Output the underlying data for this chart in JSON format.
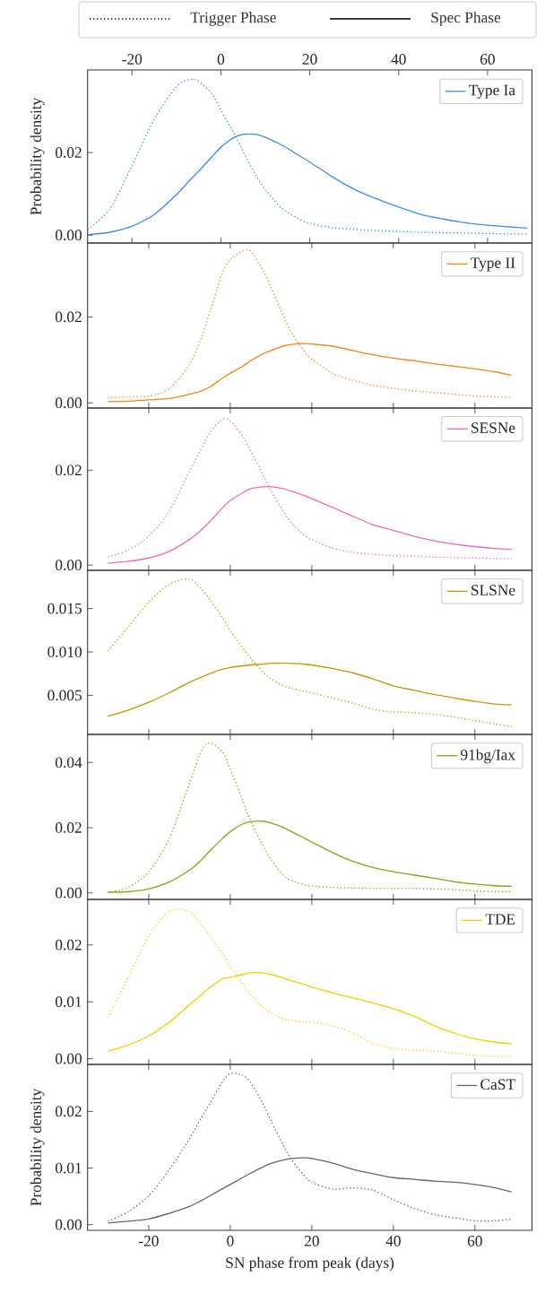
{
  "chart_data": [
    {
      "type": "other",
      "annotations": [
        "Trigger Phase",
        "Spec Phase"
      ]
    },
    {
      "type": "line",
      "x": [
        -30,
        -25,
        -20,
        -15,
        -10,
        -7,
        -5,
        -2,
        0,
        3,
        5,
        8,
        10,
        13,
        15,
        18,
        20,
        25,
        30,
        35,
        40,
        45,
        50,
        55,
        60,
        65,
        69
      ],
      "xlim": [
        -30,
        70
      ],
      "xticks": [
        -20,
        0,
        20,
        40,
        60
      ],
      "ylim": [
        -0.0019,
        0.04
      ],
      "yticks": [
        {
          "value": 0,
          "label": "0.00"
        },
        {
          "value": 0.02,
          "label": "0.02"
        }
      ],
      "ylabel": "Probability density",
      "legend": "top right",
      "series": [
        {
          "color": "#3b8eea",
          "line_style": "dotted",
          "values": [
            0.0014,
            0.0063,
            0.0168,
            0.0281,
            0.0359,
            0.0377,
            0.0372,
            0.0342,
            0.0303,
            0.0246,
            0.0203,
            0.0142,
            0.0111,
            0.0072,
            0.0055,
            0.0037,
            0.0029,
            0.0018,
            0.0014,
            0.0011,
            0.0009,
            0.0007,
            0.0006,
            0.0005,
            0.0004,
            0.0003,
            0.0003
          ]
        },
        {
          "name": "Type Ia",
          "color": "#3b8eea",
          "line_style": "solid",
          "values": [
            0.0001,
            0.0007,
            0.0022,
            0.005,
            0.0098,
            0.0133,
            0.0155,
            0.019,
            0.0213,
            0.0237,
            0.0244,
            0.0244,
            0.0237,
            0.0222,
            0.021,
            0.019,
            0.0177,
            0.0142,
            0.0111,
            0.0088,
            0.0068,
            0.005,
            0.0039,
            0.003,
            0.0024,
            0.002,
            0.0017
          ]
        }
      ]
    },
    {
      "type": "line",
      "x": [
        -30,
        -25,
        -20,
        -15,
        -10,
        -7,
        -5,
        -2,
        0,
        3,
        5,
        8,
        10,
        13,
        15,
        18,
        20,
        25,
        30,
        35,
        40,
        45,
        50,
        55,
        60,
        65,
        69
      ],
      "xlim": [
        -35,
        74
      ],
      "xticks": [
        -20,
        0,
        20,
        40,
        60
      ],
      "tick_labels": "y",
      "ylim": [
        -0.0012,
        0.0372
      ],
      "yticks": [
        {
          "value": 0,
          "label": "0.00"
        },
        {
          "value": 0.02,
          "label": "0.02"
        }
      ],
      "legend": "top right",
      "series": [
        {
          "color": "#f58518",
          "line_style": "dotted",
          "values": [
            0.0012,
            0.0014,
            0.0016,
            0.0033,
            0.0089,
            0.0154,
            0.0211,
            0.0301,
            0.0333,
            0.0353,
            0.0353,
            0.0309,
            0.0268,
            0.0203,
            0.0163,
            0.0122,
            0.0102,
            0.0069,
            0.0053,
            0.0041,
            0.0034,
            0.0028,
            0.0024,
            0.002,
            0.0016,
            0.0014,
            0.0012
          ]
        },
        {
          "name": "Type II",
          "color": "#f58518",
          "line_style": "solid",
          "values": [
            0.0003,
            0.0004,
            0.0007,
            0.001,
            0.002,
            0.0028,
            0.0037,
            0.0057,
            0.0069,
            0.0085,
            0.0098,
            0.0114,
            0.0122,
            0.0132,
            0.0136,
            0.0138,
            0.0137,
            0.0132,
            0.0122,
            0.0112,
            0.0104,
            0.0098,
            0.0091,
            0.0085,
            0.0079,
            0.0072,
            0.0064
          ]
        }
      ]
    },
    {
      "type": "line",
      "x": [
        -30,
        -25,
        -20,
        -15,
        -10,
        -7,
        -5,
        -2,
        0,
        3,
        5,
        8,
        10,
        13,
        15,
        18,
        20,
        25,
        30,
        35,
        40,
        45,
        50,
        55,
        60,
        65,
        69
      ],
      "xlim": [
        -35,
        74
      ],
      "xticks": [
        -20,
        0,
        20,
        40,
        60
      ],
      "tick_labels": "y",
      "ylim": [
        -0.0011,
        0.0331
      ],
      "yticks": [
        {
          "value": 0,
          "label": "0.00"
        },
        {
          "value": 0.02,
          "label": "0.02"
        }
      ],
      "legend": "top right",
      "series": [
        {
          "color": "#f06bb4",
          "line_style": "dotted",
          "values": [
            0.0017,
            0.0032,
            0.0061,
            0.0113,
            0.0198,
            0.0247,
            0.0279,
            0.0307,
            0.0304,
            0.0272,
            0.024,
            0.0191,
            0.0156,
            0.0113,
            0.0089,
            0.0064,
            0.0054,
            0.0036,
            0.0027,
            0.0023,
            0.002,
            0.0019,
            0.0017,
            0.0016,
            0.0015,
            0.0014,
            0.0013
          ]
        },
        {
          "name": "SESNe",
          "color": "#f06bb4",
          "line_style": "solid",
          "values": [
            0.0004,
            0.0008,
            0.0015,
            0.0029,
            0.0054,
            0.0075,
            0.0092,
            0.012,
            0.0136,
            0.0152,
            0.0161,
            0.0165,
            0.0165,
            0.0161,
            0.0156,
            0.0147,
            0.014,
            0.0122,
            0.0103,
            0.0085,
            0.0073,
            0.0061,
            0.0051,
            0.0044,
            0.0039,
            0.0035,
            0.0033
          ]
        }
      ]
    },
    {
      "type": "line",
      "x": [
        -30,
        -25,
        -20,
        -15,
        -10,
        -7,
        -5,
        -2,
        0,
        3,
        5,
        8,
        10,
        13,
        15,
        18,
        20,
        25,
        30,
        35,
        40,
        45,
        50,
        55,
        60,
        65,
        69
      ],
      "xlim": [
        -35,
        74
      ],
      "xticks": [
        -20,
        0,
        20,
        40,
        60
      ],
      "tick_labels": "y",
      "ylim": [
        0.0005,
        0.0194
      ],
      "yticks": [
        {
          "value": 0.005,
          "label": "0.005"
        },
        {
          "value": 0.01,
          "label": "0.010"
        },
        {
          "value": 0.015,
          "label": "0.015"
        }
      ],
      "legend": "top right",
      "series": [
        {
          "color": "#c49a00",
          "line_style": "dotted",
          "values": [
            0.0101,
            0.0129,
            0.0157,
            0.0178,
            0.0184,
            0.0172,
            0.016,
            0.014,
            0.0125,
            0.0105,
            0.0093,
            0.0077,
            0.0069,
            0.0061,
            0.0058,
            0.0055,
            0.0053,
            0.0047,
            0.0041,
            0.0034,
            0.0031,
            0.003,
            0.0028,
            0.0025,
            0.0021,
            0.0017,
            0.0014
          ]
        },
        {
          "name": "SLSNe",
          "color": "#c49a00",
          "line_style": "solid",
          "values": [
            0.0026,
            0.0033,
            0.0042,
            0.0053,
            0.0065,
            0.0071,
            0.0075,
            0.008,
            0.0082,
            0.0084,
            0.0085,
            0.0086,
            0.0087,
            0.0087,
            0.0087,
            0.0086,
            0.0085,
            0.0081,
            0.0076,
            0.0069,
            0.0061,
            0.0056,
            0.0051,
            0.0047,
            0.0043,
            0.004,
            0.0039
          ]
        }
      ]
    },
    {
      "type": "line",
      "x": [
        -30,
        -25,
        -20,
        -15,
        -10,
        -7,
        -5,
        -2,
        0,
        3,
        5,
        8,
        10,
        13,
        15,
        18,
        20,
        25,
        30,
        35,
        40,
        45,
        50,
        55,
        60,
        65,
        69
      ],
      "xlim": [
        -35,
        74
      ],
      "xticks": [
        -20,
        0,
        20,
        40,
        60
      ],
      "tick_labels": "y",
      "ylim": [
        -0.002,
        0.0486
      ],
      "yticks": [
        {
          "value": 0,
          "label": "0.00"
        },
        {
          "value": 0.02,
          "label": "0.02"
        },
        {
          "value": 0.04,
          "label": "0.04"
        }
      ],
      "legend": "top right",
      "series": [
        {
          "color": "#7cad12",
          "line_style": "dotted",
          "values": [
            0.0002,
            0.0017,
            0.0065,
            0.0166,
            0.0337,
            0.0438,
            0.046,
            0.0433,
            0.038,
            0.0284,
            0.022,
            0.0145,
            0.0102,
            0.0054,
            0.0038,
            0.0026,
            0.0021,
            0.0017,
            0.0015,
            0.0014,
            0.0014,
            0.0014,
            0.0012,
            0.001,
            0.0006,
            0.0004,
            0.0004
          ]
        },
        {
          "name": "91bg/Iax",
          "color": "#7cad12",
          "line_style": "solid",
          "values": [
            0.0002,
            0.0004,
            0.0012,
            0.0033,
            0.007,
            0.0102,
            0.0129,
            0.0166,
            0.0188,
            0.0211,
            0.0218,
            0.022,
            0.0214,
            0.0201,
            0.0188,
            0.0169,
            0.0156,
            0.0124,
            0.0097,
            0.0078,
            0.0065,
            0.0055,
            0.0045,
            0.0034,
            0.0027,
            0.0022,
            0.002
          ]
        }
      ]
    },
    {
      "type": "line",
      "x": [
        -30,
        -25,
        -20,
        -15,
        -10,
        -7,
        -5,
        -2,
        0,
        3,
        5,
        8,
        10,
        13,
        15,
        18,
        20,
        25,
        30,
        35,
        40,
        45,
        50,
        55,
        60,
        65,
        69
      ],
      "xlim": [
        -35,
        74
      ],
      "xticks": [
        -20,
        0,
        20,
        40,
        60
      ],
      "tick_labels": "y",
      "ylim": [
        -0.001,
        0.028
      ],
      "yticks": [
        {
          "value": 0,
          "label": "0.00"
        },
        {
          "value": 0.01,
          "label": "0.01"
        },
        {
          "value": 0.02,
          "label": "0.02"
        }
      ],
      "legend": "top right",
      "series": [
        {
          "color": "#f5d000",
          "line_style": "dotted",
          "values": [
            0.0072,
            0.0143,
            0.0216,
            0.0259,
            0.0259,
            0.0235,
            0.0216,
            0.0186,
            0.0162,
            0.0131,
            0.0113,
            0.0091,
            0.0081,
            0.007,
            0.0067,
            0.0065,
            0.0064,
            0.0058,
            0.0046,
            0.0027,
            0.0018,
            0.0015,
            0.0014,
            0.001,
            0.0006,
            0.0004,
            0.0004
          ]
        },
        {
          "name": "TDE",
          "color": "#f5d000",
          "line_style": "solid",
          "values": [
            0.0013,
            0.0024,
            0.004,
            0.0064,
            0.0095,
            0.0113,
            0.0125,
            0.014,
            0.0143,
            0.0148,
            0.0151,
            0.0151,
            0.0148,
            0.0142,
            0.0137,
            0.0131,
            0.0126,
            0.0116,
            0.0107,
            0.0098,
            0.0088,
            0.0075,
            0.0058,
            0.0045,
            0.0035,
            0.0029,
            0.0026
          ]
        }
      ]
    },
    {
      "type": "line",
      "x": [
        -30,
        -25,
        -20,
        -15,
        -10,
        -7,
        -5,
        -2,
        0,
        3,
        5,
        8,
        10,
        13,
        15,
        18,
        20,
        25,
        30,
        35,
        40,
        45,
        50,
        55,
        60,
        65,
        69
      ],
      "xlim": [
        -35,
        74
      ],
      "xticks": [
        -20,
        0,
        20,
        40,
        60
      ],
      "ylim": [
        -0.001,
        0.0283
      ],
      "yticks": [
        {
          "value": 0,
          "label": "0.00"
        },
        {
          "value": 0.01,
          "label": "0.01"
        },
        {
          "value": 0.02,
          "label": "0.02"
        }
      ],
      "xlabel": "SN phase from peak (days)",
      "ylabel": "Probability density",
      "legend": "top right",
      "series": [
        {
          "color": "#666666",
          "line_style": "dotted",
          "values": [
            0.0006,
            0.0023,
            0.0051,
            0.0097,
            0.0152,
            0.019,
            0.0214,
            0.0251,
            0.0267,
            0.0264,
            0.0251,
            0.0214,
            0.0183,
            0.014,
            0.0115,
            0.0088,
            0.0075,
            0.0063,
            0.0065,
            0.0061,
            0.0044,
            0.0029,
            0.0018,
            0.0012,
            0.0007,
            0.0007,
            0.001
          ]
        },
        {
          "name": "CaST",
          "color": "#666666",
          "line_style": "solid",
          "values": [
            0.0003,
            0.0006,
            0.001,
            0.002,
            0.0032,
            0.0043,
            0.0051,
            0.0063,
            0.0071,
            0.0083,
            0.0091,
            0.0102,
            0.0108,
            0.0114,
            0.0117,
            0.0118,
            0.0117,
            0.0109,
            0.0098,
            0.009,
            0.0083,
            0.008,
            0.0077,
            0.0075,
            0.0071,
            0.0065,
            0.0058
          ]
        }
      ]
    }
  ]
}
